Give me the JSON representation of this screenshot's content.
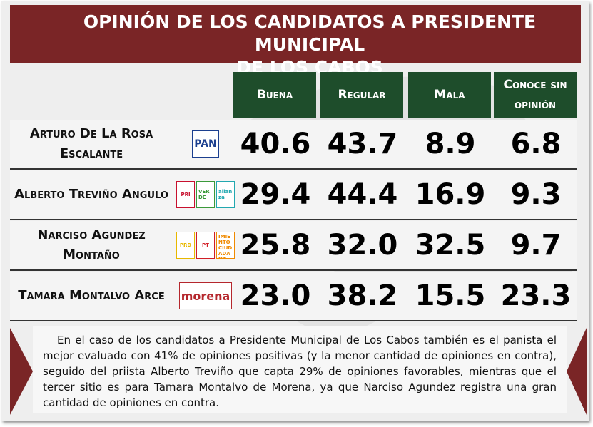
{
  "header": {
    "title_line1": "OPINIÓN DE LOS CANDIDATOS A PRESIDENTE MUNICIPAL",
    "title_line2": "DE LOS CABOS"
  },
  "table": {
    "columns": [
      "Buena",
      "Regular",
      "Mala",
      "Conoce sin opinión"
    ],
    "rows": [
      {
        "name": "Arturo De La Rosa Escalante",
        "logos": [
          {
            "label": "PAN",
            "color": "#1b3f8f"
          }
        ],
        "values": [
          "40.6",
          "43.7",
          "8.9",
          "6.8"
        ]
      },
      {
        "name": "Alberto Treviño Angulo",
        "logos": [
          {
            "label": "PRI",
            "color": "#c8102e"
          },
          {
            "label": "VERDE",
            "color": "#3a9a3a"
          },
          {
            "label": "alianza",
            "color": "#22a8b0"
          }
        ],
        "values": [
          "29.4",
          "44.4",
          "16.9",
          "9.3"
        ]
      },
      {
        "name": "Narciso Agundez Montaño",
        "logos": [
          {
            "label": "PRD",
            "color": "#e8b800"
          },
          {
            "label": "PT",
            "color": "#d21f26"
          },
          {
            "label": "MOVIMIENTO CIUDADANO",
            "color": "#f08a00"
          }
        ],
        "values": [
          "25.8",
          "32.0",
          "32.5",
          "9.7"
        ]
      },
      {
        "name": "Tamara Montalvo Arce",
        "logos": [
          {
            "label": "morena",
            "color": "#b5272d"
          }
        ],
        "values": [
          "23.0",
          "38.2",
          "15.5",
          "23.3"
        ]
      }
    ]
  },
  "paragraph": "En el caso de los candidatos a Presidente Municipal de Los Cabos también es el panista el mejor evaluado con 41% de opiniones positivas (y la menor cantidad de opiniones en contra), seguido del priista Alberto Treviño que capta 29% de opiniones favorables, mientras que el tercer sitio es para Tamara Montalvo de Morena, ya que  Narciso Agundez registra una gran cantidad de opiniones en contra."
}
